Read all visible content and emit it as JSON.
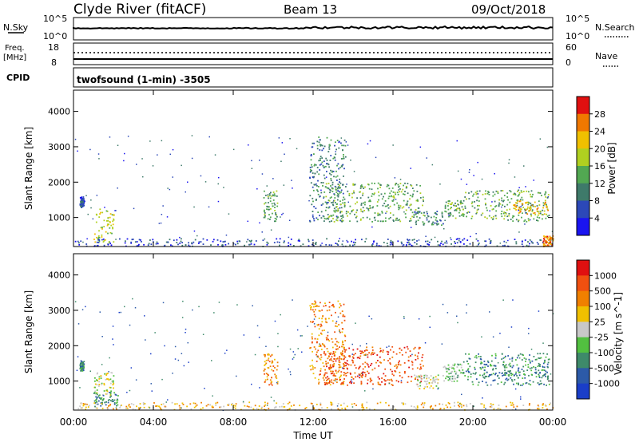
{
  "header": {
    "station": "Clyde River (fitACF)",
    "beam": "Beam 13",
    "date": "09/Oct/2018"
  },
  "top_panels": {
    "nsky_label": "N.Sky",
    "nsky_scale_top": "10^5",
    "nsky_scale_bottom": "10^0",
    "nsearch_label": "N.Search",
    "nsearch_scale_top": "10^5",
    "nsearch_scale_bottom": "10^0",
    "freq_label": "Freq.",
    "freq_unit": "[MHz]",
    "freq_top": "18",
    "freq_bottom": "8",
    "nave_label": "Nave",
    "nave_top": "60",
    "nave_bottom": "0",
    "cpid_label": "CPID",
    "cpid_text": "twofsound (1-min) -3505"
  },
  "chart_data": [
    {
      "type": "heatmap",
      "name": "power-panel",
      "xlabel": "",
      "ylabel": "Slant Range [km]",
      "x_ticks": [
        "00:00",
        "04:00",
        "08:00",
        "12:00",
        "16:00",
        "20:00",
        "00:00"
      ],
      "x_range_hours": [
        0,
        24
      ],
      "y_ticks": [
        1000,
        2000,
        3000,
        4000
      ],
      "ylim": [
        180,
        4600
      ],
      "colorbar": {
        "label": "Power [dB]",
        "ticks": [
          "4",
          "8",
          "12",
          "16",
          "20",
          "24",
          "28"
        ],
        "colors": [
          "#1a14f0",
          "#2c48b8",
          "#3e7a6a",
          "#52a852",
          "#b0d020",
          "#f0c000",
          "#f07800",
          "#e01010"
        ]
      },
      "clusters": [
        {
          "t": [
            0.3,
            0.5
          ],
          "r": [
            1300,
            1600
          ],
          "level": 1
        },
        {
          "t": [
            1.0,
            2.0
          ],
          "r": [
            300,
            1300
          ],
          "level": 4
        },
        {
          "t": [
            9.5,
            10.2
          ],
          "r": [
            900,
            1800
          ],
          "level": 3
        },
        {
          "t": [
            11.8,
            13.6
          ],
          "r": [
            900,
            3300
          ],
          "level": 2
        },
        {
          "t": [
            12.5,
            17.5
          ],
          "r": [
            900,
            2000
          ],
          "level": 3
        },
        {
          "t": [
            17.0,
            18.5
          ],
          "r": [
            800,
            1200
          ],
          "level": 2
        },
        {
          "t": [
            18.5,
            19.5
          ],
          "r": [
            1000,
            1500
          ],
          "level": 3
        },
        {
          "t": [
            19.5,
            23.8
          ],
          "r": [
            900,
            1800
          ],
          "level": 3
        },
        {
          "t": [
            22.0,
            23.8
          ],
          "r": [
            1100,
            1500
          ],
          "level": 5
        },
        {
          "t": [
            0.0,
            24.0
          ],
          "r": [
            200,
            420
          ],
          "level": 1
        },
        {
          "t": [
            23.5,
            24.0
          ],
          "r": [
            200,
            500
          ],
          "level": 6
        }
      ]
    },
    {
      "type": "heatmap",
      "name": "velocity-panel",
      "xlabel": "Time UT",
      "ylabel": "Slant Range [km]",
      "x_ticks": [
        "00:00",
        "04:00",
        "08:00",
        "12:00",
        "16:00",
        "20:00",
        "00:00"
      ],
      "x_range_hours": [
        0,
        24
      ],
      "y_ticks": [
        1000,
        2000,
        3000,
        4000
      ],
      "ylim": [
        180,
        4600
      ],
      "colorbar": {
        "label": "Velocity [m s^-1]",
        "ticks": [
          "1000",
          "500",
          "100",
          "25",
          "-25",
          "-100",
          "-500",
          "-1000"
        ],
        "colors": [
          "#1a3ec8",
          "#2c5aa8",
          "#3e8a6a",
          "#52c040",
          "#c8c8c8",
          "#f0c000",
          "#f08000",
          "#f05010",
          "#e01010"
        ]
      },
      "clusters": [
        {
          "t": [
            0.3,
            0.5
          ],
          "r": [
            1300,
            1600
          ],
          "level": 2
        },
        {
          "t": [
            1.0,
            2.0
          ],
          "r": [
            600,
            1300
          ],
          "level": 4
        },
        {
          "t": [
            1.0,
            2.2
          ],
          "r": [
            300,
            700
          ],
          "level": 2
        },
        {
          "t": [
            9.5,
            10.2
          ],
          "r": [
            900,
            1800
          ],
          "level": 6
        },
        {
          "t": [
            11.8,
            13.6
          ],
          "r": [
            900,
            3300
          ],
          "level": 6
        },
        {
          "t": [
            12.5,
            17.5
          ],
          "r": [
            900,
            2000
          ],
          "level": 7
        },
        {
          "t": [
            17.0,
            18.5
          ],
          "r": [
            800,
            1200
          ],
          "level": 4
        },
        {
          "t": [
            18.5,
            19.5
          ],
          "r": [
            1000,
            1500
          ],
          "level": 3
        },
        {
          "t": [
            19.5,
            23.8
          ],
          "r": [
            900,
            1800
          ],
          "level": 2
        },
        {
          "t": [
            20.5,
            23.8
          ],
          "r": [
            1100,
            1500
          ],
          "level": 2
        },
        {
          "t": [
            0.0,
            24.0
          ],
          "r": [
            200,
            420
          ],
          "level": 5
        }
      ]
    }
  ]
}
